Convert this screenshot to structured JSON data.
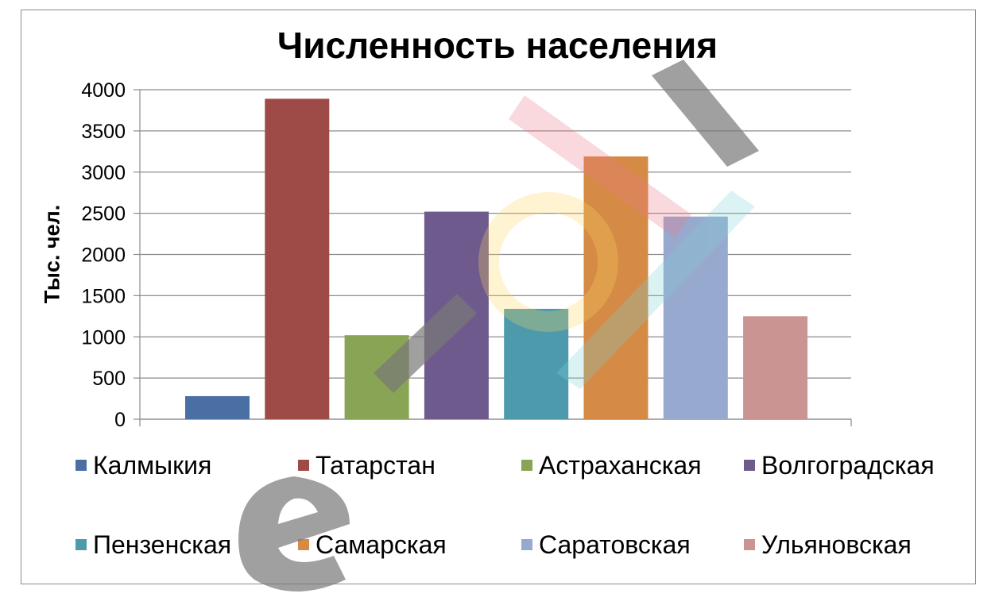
{
  "chart_data": {
    "type": "bar",
    "title": "Численность населения",
    "ylabel": "Тыс. чел.",
    "xlabel": "",
    "ylim": [
      0,
      4000
    ],
    "yticks": [
      0,
      500,
      1000,
      1500,
      2000,
      2500,
      3000,
      3500,
      4000
    ],
    "grid": true,
    "legend_position": "bottom",
    "categories": [
      "Калмыкия",
      "Татарстан",
      "Астраханская",
      "Волгоградская",
      "Пензенская",
      "Самарская",
      "Саратовская",
      "Ульяновская"
    ],
    "values": [
      280,
      3890,
      1020,
      2520,
      1340,
      3190,
      2460,
      1250
    ],
    "colors": [
      "#4a6fa5",
      "#9e4a47",
      "#8aa455",
      "#6e5a8c",
      "#4c9aac",
      "#d58a45",
      "#97a9cf",
      "#c99491"
    ]
  },
  "watermark": {
    "text": "eurokI"
  }
}
